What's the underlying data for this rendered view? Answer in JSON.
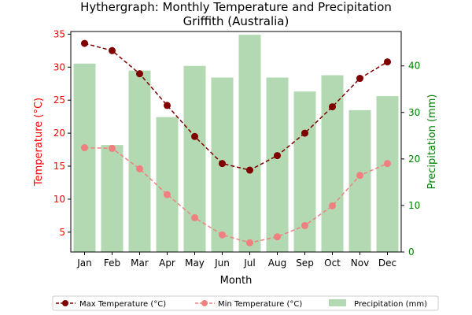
{
  "chart_data": {
    "type": "bar+line",
    "title_line1": "Hythergraph: Monthly Temperature and Precipitation",
    "title_line2": "Griffith (Australia)",
    "xlabel": "Month",
    "ylabel_left": "Temperature (°C)",
    "ylabel_right": "Precipitation (mm)",
    "categories": [
      "Jan",
      "Feb",
      "Mar",
      "Apr",
      "May",
      "Jun",
      "Jul",
      "Aug",
      "Sep",
      "Oct",
      "Nov",
      "Dec"
    ],
    "y_left_ticks": [
      5,
      10,
      15,
      20,
      25,
      30,
      35
    ],
    "y_left_range": [
      2,
      35.4
    ],
    "y_right_ticks": [
      0,
      10,
      20,
      30,
      40
    ],
    "y_right_range": [
      0,
      47.4
    ],
    "series": [
      {
        "name": "Max Temperature (°C)",
        "axis": "left",
        "kind": "line",
        "values": [
          33.6,
          32.5,
          29.0,
          24.2,
          19.5,
          15.4,
          14.4,
          16.6,
          20.0,
          24.0,
          28.3,
          30.8
        ]
      },
      {
        "name": "Min Temperature (°C)",
        "axis": "left",
        "kind": "line",
        "values": [
          17.8,
          17.7,
          14.6,
          10.7,
          7.2,
          4.6,
          3.4,
          4.3,
          6.0,
          9.0,
          13.6,
          15.4
        ]
      },
      {
        "name": "Precipitation (mm)",
        "axis": "right",
        "kind": "bar",
        "values": [
          40.5,
          23.0,
          39.0,
          29.0,
          40.0,
          37.5,
          46.7,
          37.5,
          34.5,
          38.0,
          30.5,
          33.5
        ]
      }
    ],
    "colors": {
      "max": "#800000",
      "min": "#f08080",
      "precip": "#b2d9b2",
      "left_axis": "#ff0000",
      "right_axis": "#008000"
    },
    "legend_position": "bottom-center"
  }
}
